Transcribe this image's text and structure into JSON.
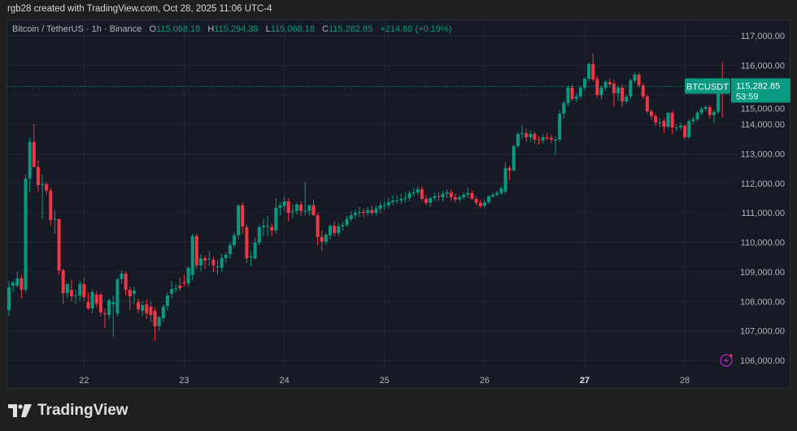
{
  "credit": "rgb28 created with TradingView.com, Oct 28, 2025 11:06 UTC-4",
  "legend": {
    "symbol": "Bitcoin / TetherUS · 1h · Binance",
    "o_label": "O",
    "o": "115,068.18",
    "h_label": "H",
    "h": "115,294.38",
    "l_label": "L",
    "l": "115,068.18",
    "c_label": "C",
    "c": "115,282.85",
    "change": "+214.68 (+0.19%)"
  },
  "price_tag": {
    "symbol": "BTCUSDT",
    "price": "115,282.85",
    "countdown": "53:59"
  },
  "logo": {
    "text": "TradingView"
  },
  "colors": {
    "up": "#089981",
    "down": "#f23645",
    "background": "#161a25",
    "grid": "#232733",
    "axis_text": "#b2b5be",
    "alert_icon": "#9c27b0"
  },
  "icons": [
    "lightning-alert-icon",
    "tradingview-logo-icon"
  ],
  "chart_data": {
    "type": "candlestick",
    "interval": "1h",
    "first_candle_index_of_day_22": 18,
    "ylim": [
      105800,
      117400
    ],
    "y_ticks": [
      "117,000.00",
      "116,000.00",
      "115,000.00",
      "114,000.00",
      "113,000.00",
      "112,000.00",
      "111,000.00",
      "110,000.00",
      "109,000.00",
      "108,000.00",
      "107,000.00",
      "106,000.00"
    ],
    "y_tick_values": [
      117000,
      116000,
      115000,
      114000,
      113000,
      112000,
      111000,
      110000,
      109000,
      108000,
      107000,
      106000
    ],
    "x_ticks": [
      {
        "label": "22",
        "candle": 18
      },
      {
        "label": "23",
        "candle": 42
      },
      {
        "label": "24",
        "candle": 66
      },
      {
        "label": "25",
        "candle": 90
      },
      {
        "label": "26",
        "candle": 114
      },
      {
        "label": "27",
        "candle": 138,
        "bold": true
      },
      {
        "label": "28",
        "candle": 162
      }
    ],
    "grid": true,
    "last_price": 115282.85,
    "ohlc_fields": [
      "open",
      "high",
      "low",
      "close"
    ],
    "candles": [
      [
        107700,
        108700,
        107500,
        108480
      ],
      [
        108530,
        108700,
        108300,
        108640
      ],
      [
        108530,
        109000,
        108480,
        108780
      ],
      [
        108780,
        108900,
        108100,
        108390
      ],
      [
        108390,
        112300,
        108300,
        112160
      ],
      [
        112160,
        113540,
        111700,
        113400
      ],
      [
        113400,
        114000,
        112600,
        112550
      ],
      [
        112550,
        112800,
        111700,
        111940
      ],
      [
        111970,
        112300,
        110800,
        111970
      ],
      [
        111970,
        112050,
        111600,
        111750
      ],
      [
        111750,
        111850,
        110550,
        110760
      ],
      [
        110790,
        111100,
        110300,
        110790
      ],
      [
        110790,
        110800,
        108900,
        109050
      ],
      [
        109050,
        109100,
        107900,
        108280
      ],
      [
        108280,
        108600,
        108100,
        108590
      ],
      [
        108390,
        108750,
        108000,
        108170
      ],
      [
        108200,
        108400,
        107900,
        108200
      ],
      [
        108200,
        108700,
        108000,
        108590
      ],
      [
        108590,
        108800,
        108000,
        108140
      ],
      [
        107980,
        108300,
        107700,
        107760
      ],
      [
        107760,
        108400,
        107600,
        108310
      ],
      [
        108230,
        108350,
        107800,
        107920
      ],
      [
        108230,
        108300,
        107500,
        107620
      ],
      [
        107600,
        107750,
        107100,
        107570
      ],
      [
        107540,
        108100,
        107400,
        108030
      ],
      [
        107900,
        108200,
        106800,
        107980
      ],
      [
        107600,
        108800,
        107500,
        108750
      ],
      [
        108750,
        109050,
        108600,
        108940
      ],
      [
        108940,
        109000,
        108200,
        108390
      ],
      [
        108390,
        108500,
        107700,
        108170
      ],
      [
        108260,
        108500,
        107900,
        108360
      ],
      [
        107980,
        108100,
        107600,
        107730
      ],
      [
        107680,
        108000,
        107500,
        107870
      ],
      [
        107900,
        108050,
        107400,
        107600
      ],
      [
        107820,
        108000,
        107300,
        107540
      ],
      [
        107680,
        107800,
        106660,
        107160
      ],
      [
        107160,
        107500,
        107000,
        107460
      ],
      [
        107430,
        107900,
        107300,
        107820
      ],
      [
        107840,
        108300,
        107700,
        108200
      ],
      [
        108260,
        108700,
        108100,
        108420
      ],
      [
        108420,
        108600,
        108300,
        108450
      ],
      [
        108530,
        108800,
        108350,
        108450
      ],
      [
        108640,
        108900,
        108500,
        108610
      ],
      [
        108610,
        109200,
        108500,
        109140
      ],
      [
        108890,
        110300,
        108700,
        110210
      ],
      [
        110210,
        110300,
        109100,
        109220
      ],
      [
        109220,
        109600,
        109000,
        109460
      ],
      [
        109460,
        109550,
        109100,
        109380
      ],
      [
        109440,
        109700,
        109200,
        109440
      ],
      [
        109410,
        109500,
        109000,
        109220
      ],
      [
        109190,
        109400,
        108900,
        109190
      ],
      [
        109140,
        109600,
        109000,
        109460
      ],
      [
        109460,
        109650,
        109300,
        109580
      ],
      [
        109600,
        110000,
        109450,
        109900
      ],
      [
        109900,
        110350,
        109800,
        110240
      ],
      [
        110240,
        111300,
        110100,
        111250
      ],
      [
        111250,
        111350,
        110300,
        110540
      ],
      [
        110510,
        110600,
        109300,
        109460
      ],
      [
        109520,
        109700,
        109200,
        109520
      ],
      [
        109460,
        110150,
        109400,
        109990
      ],
      [
        109990,
        110600,
        109900,
        110510
      ],
      [
        110510,
        110800,
        110200,
        110560
      ],
      [
        110560,
        110900,
        110200,
        110560
      ],
      [
        110510,
        110650,
        110200,
        110400
      ],
      [
        110400,
        111500,
        110300,
        111170
      ],
      [
        111170,
        111350,
        110900,
        111250
      ],
      [
        111230,
        111550,
        111050,
        111390
      ],
      [
        111390,
        111500,
        110700,
        111000
      ],
      [
        111060,
        111300,
        110800,
        111060
      ],
      [
        111060,
        111350,
        110950,
        111280
      ],
      [
        111280,
        111400,
        110900,
        111060
      ],
      [
        111060,
        112050,
        110900,
        111060
      ],
      [
        111060,
        111300,
        110900,
        111250
      ],
      [
        111250,
        111450,
        110900,
        110920
      ],
      [
        110920,
        111000,
        109900,
        110180
      ],
      [
        110180,
        110400,
        109700,
        110020
      ],
      [
        110020,
        110300,
        109900,
        110260
      ],
      [
        110240,
        110600,
        110100,
        110560
      ],
      [
        110560,
        110700,
        110200,
        110320
      ],
      [
        110320,
        110650,
        110200,
        110540
      ],
      [
        110540,
        110700,
        110400,
        110590
      ],
      [
        110590,
        110900,
        110500,
        110790
      ],
      [
        110790,
        111050,
        110700,
        110920
      ],
      [
        110920,
        111100,
        110800,
        111000
      ],
      [
        111000,
        111200,
        110850,
        111030
      ],
      [
        111030,
        111150,
        110850,
        111000
      ],
      [
        111000,
        111200,
        110900,
        111090
      ],
      [
        111090,
        111250,
        110900,
        111000
      ],
      [
        111000,
        111250,
        110900,
        111140
      ],
      [
        111140,
        111350,
        111000,
        111250
      ],
      [
        111250,
        111400,
        111100,
        111250
      ],
      [
        111250,
        111500,
        111150,
        111360
      ],
      [
        111360,
        111600,
        111250,
        111420
      ],
      [
        111420,
        111600,
        111300,
        111420
      ],
      [
        111420,
        111650,
        111300,
        111470
      ],
      [
        111470,
        111700,
        111350,
        111500
      ],
      [
        111500,
        111750,
        111400,
        111670
      ],
      [
        111670,
        111850,
        111550,
        111690
      ],
      [
        111690,
        111900,
        111600,
        111800
      ],
      [
        111800,
        111900,
        111400,
        111470
      ],
      [
        111470,
        111600,
        111250,
        111340
      ],
      [
        111340,
        111550,
        111200,
        111500
      ],
      [
        111500,
        111700,
        111400,
        111560
      ],
      [
        111560,
        111700,
        111400,
        111530
      ],
      [
        111530,
        111750,
        111400,
        111640
      ],
      [
        111640,
        111800,
        111500,
        111690
      ],
      [
        111690,
        111800,
        111400,
        111530
      ],
      [
        111530,
        111650,
        111350,
        111450
      ],
      [
        111450,
        111600,
        111350,
        111530
      ],
      [
        111530,
        111700,
        111450,
        111610
      ],
      [
        111610,
        111850,
        111500,
        111670
      ],
      [
        111670,
        111750,
        111450,
        111470
      ],
      [
        111470,
        111550,
        111250,
        111340
      ],
      [
        111340,
        111450,
        111150,
        111230
      ],
      [
        111230,
        111450,
        111150,
        111360
      ],
      [
        111360,
        111600,
        111300,
        111560
      ],
      [
        111560,
        111700,
        111500,
        111610
      ],
      [
        111610,
        111750,
        111550,
        111670
      ],
      [
        111670,
        111900,
        111600,
        111830
      ],
      [
        111720,
        112700,
        111650,
        112520
      ],
      [
        112520,
        112600,
        112100,
        112440
      ],
      [
        112440,
        113300,
        112400,
        113260
      ],
      [
        113260,
        113750,
        113200,
        113670
      ],
      [
        113670,
        113950,
        113500,
        113700
      ],
      [
        113700,
        113850,
        113400,
        113560
      ],
      [
        113560,
        113800,
        113400,
        113670
      ],
      [
        113670,
        113750,
        113350,
        113480
      ],
      [
        113480,
        113600,
        113300,
        113450
      ],
      [
        113450,
        113650,
        113350,
        113560
      ],
      [
        113560,
        113700,
        113450,
        113540
      ],
      [
        113540,
        113650,
        113350,
        113480
      ],
      [
        113480,
        113600,
        112950,
        113480
      ],
      [
        113480,
        114450,
        113400,
        114360
      ],
      [
        114360,
        114800,
        114200,
        114720
      ],
      [
        114720,
        115300,
        114600,
        115240
      ],
      [
        115240,
        115350,
        114800,
        114860
      ],
      [
        114860,
        115050,
        114750,
        114940
      ],
      [
        114940,
        115300,
        114850,
        115240
      ],
      [
        115240,
        115600,
        115150,
        115540
      ],
      [
        115540,
        116100,
        115450,
        116040
      ],
      [
        116040,
        116400,
        115450,
        115520
      ],
      [
        115540,
        115650,
        114900,
        114990
      ],
      [
        114990,
        115300,
        114850,
        115240
      ],
      [
        115240,
        115500,
        115150,
        115430
      ],
      [
        115430,
        115550,
        115250,
        115350
      ],
      [
        115380,
        115500,
        114600,
        115050
      ],
      [
        115050,
        115300,
        114800,
        115240
      ],
      [
        115240,
        115350,
        114600,
        114770
      ],
      [
        114770,
        115000,
        114700,
        114940
      ],
      [
        114940,
        115550,
        114850,
        115490
      ],
      [
        115490,
        115750,
        115400,
        115680
      ],
      [
        115680,
        115750,
        115250,
        115320
      ],
      [
        115320,
        115400,
        114850,
        114940
      ],
      [
        114940,
        115000,
        114350,
        114440
      ],
      [
        114440,
        114500,
        114150,
        114280
      ],
      [
        114280,
        114350,
        113950,
        114060
      ],
      [
        114060,
        114200,
        113900,
        114060
      ],
      [
        114110,
        114200,
        113700,
        113920
      ],
      [
        113920,
        114400,
        113850,
        114390
      ],
      [
        114390,
        114450,
        113650,
        113890
      ],
      [
        113890,
        114000,
        113750,
        113890
      ],
      [
        113890,
        114050,
        113800,
        113950
      ],
      [
        113950,
        114000,
        113500,
        113560
      ],
      [
        113560,
        114150,
        113500,
        114110
      ],
      [
        114110,
        114250,
        114000,
        114170
      ],
      [
        114170,
        114450,
        114100,
        114390
      ],
      [
        114390,
        114600,
        114300,
        114520
      ],
      [
        114520,
        114650,
        114450,
        114580
      ],
      [
        114580,
        114650,
        114200,
        114310
      ],
      [
        114310,
        114500,
        114050,
        114420
      ],
      [
        114420,
        115400,
        114350,
        115350
      ],
      [
        115350,
        116090,
        114220,
        115068.18
      ],
      [
        115068.18,
        115294.38,
        115068.18,
        115282.85
      ]
    ]
  }
}
